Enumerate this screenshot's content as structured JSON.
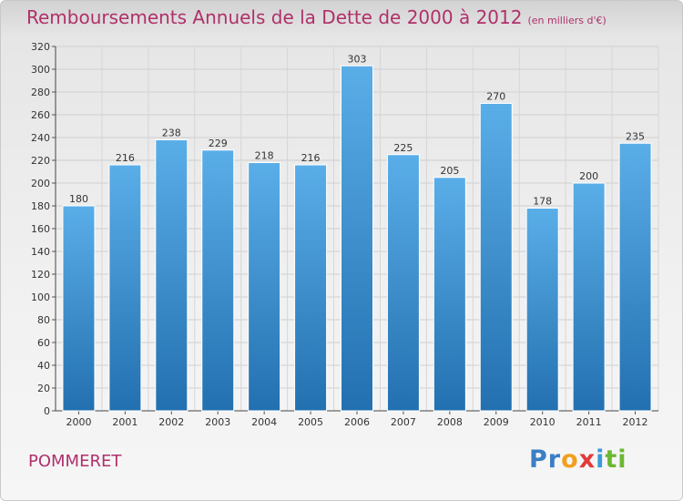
{
  "title": "Remboursements Annuels de la Dette de 2000 à 2012",
  "subtitle": "(en milliers d'€)",
  "commune": "POMMERET",
  "logo": {
    "letters": [
      "P",
      "r",
      "o",
      "x",
      "i",
      "t",
      "i"
    ],
    "colors": [
      "#3a7fc4",
      "#3a7fc4",
      "#f0a020",
      "#e03a3a",
      "#3a9ad8",
      "#6ab832",
      "#6ab832"
    ]
  },
  "colors": {
    "title": "#b0306a",
    "bar_top": "#5aaee8",
    "bar_bottom": "#2370b0"
  },
  "chart_data": {
    "type": "bar",
    "title": "Remboursements Annuels de la Dette de 2000 à 2012",
    "subtitle": "(en milliers d'€)",
    "categories": [
      "2000",
      "2001",
      "2002",
      "2003",
      "2004",
      "2005",
      "2006",
      "2007",
      "2008",
      "2009",
      "2010",
      "2011",
      "2012"
    ],
    "values": [
      180,
      216,
      238,
      229,
      218,
      216,
      303,
      225,
      205,
      270,
      178,
      200,
      235
    ],
    "ylim": [
      0,
      320
    ],
    "yticks": [
      0,
      20,
      40,
      60,
      80,
      100,
      120,
      140,
      160,
      180,
      200,
      220,
      240,
      260,
      280,
      300,
      320
    ],
    "grid": true,
    "legend": "none"
  }
}
